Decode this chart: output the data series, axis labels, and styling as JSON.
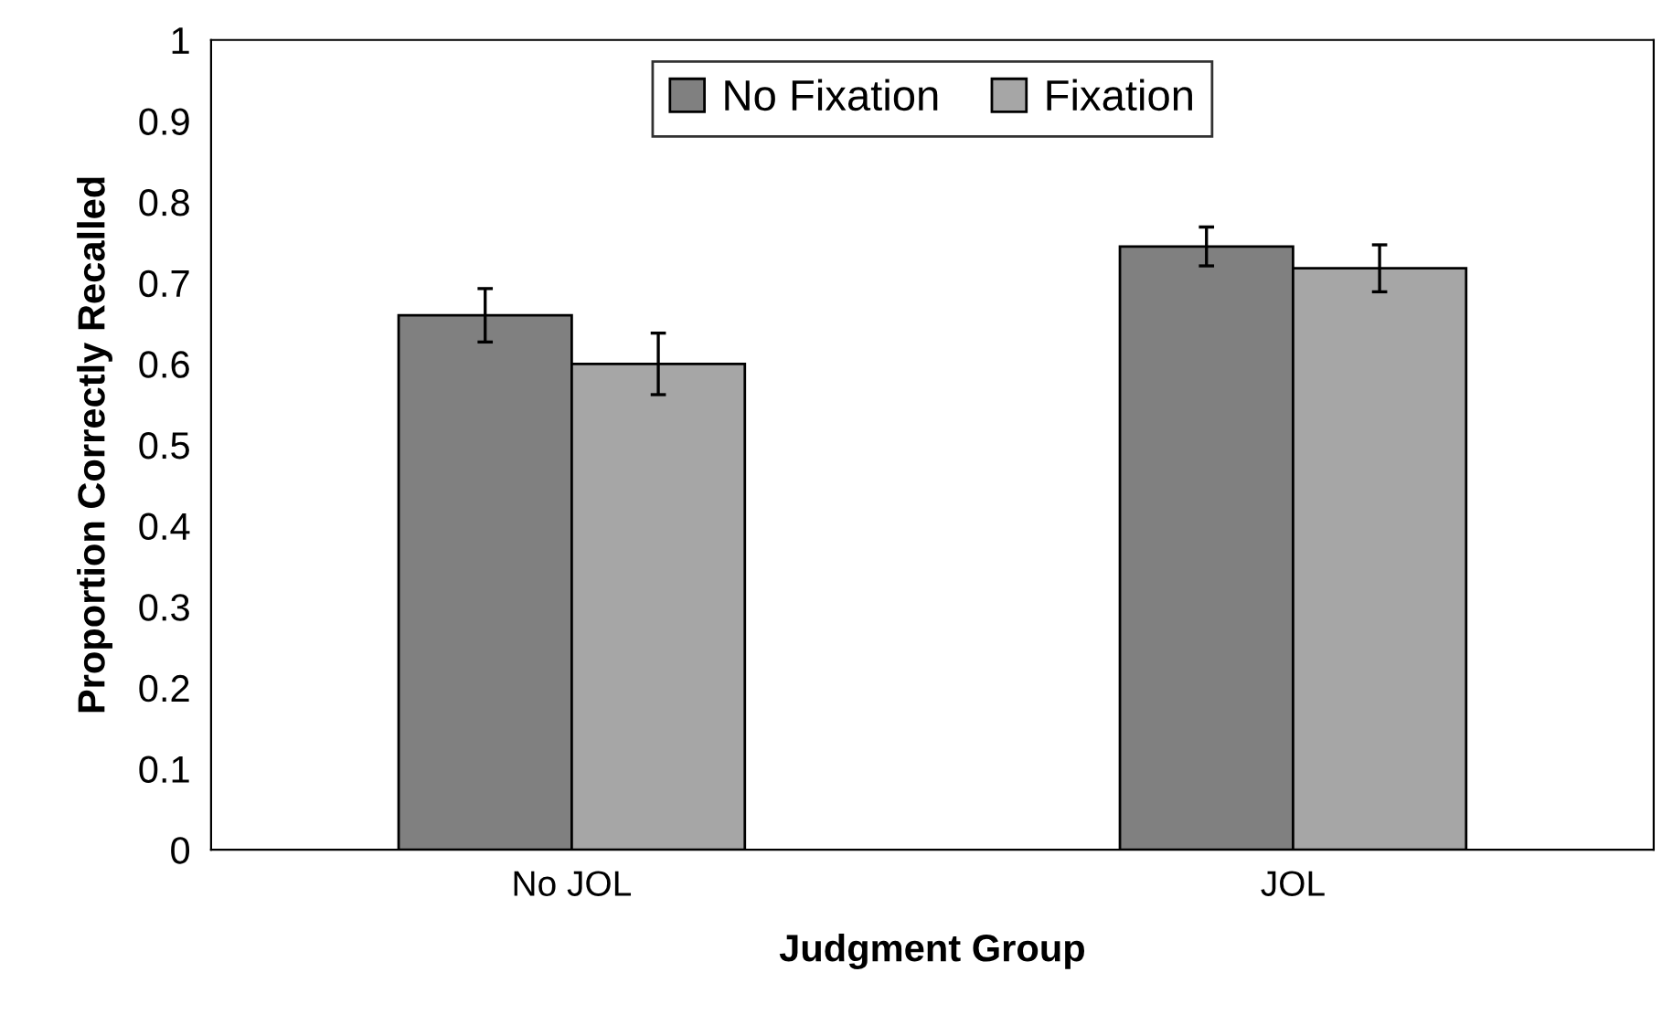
{
  "chart_data": {
    "type": "bar",
    "xlabel": "Judgment Group",
    "ylabel": "Proportion Correctly Recalled",
    "categories": [
      "No JOL",
      "JOL"
    ],
    "series": [
      {
        "name": "No Fixation",
        "color": "#808080",
        "values": [
          0.66,
          0.745
        ],
        "errors": [
          0.033,
          0.024
        ]
      },
      {
        "name": "Fixation",
        "color": "#a6a6a6",
        "values": [
          0.6,
          0.718
        ],
        "errors": [
          0.038,
          0.029
        ]
      }
    ],
    "ylim": [
      0,
      1
    ],
    "yticks": [
      0,
      0.1,
      0.2,
      0.3,
      0.4,
      0.5,
      0.6,
      0.7,
      0.8,
      0.9,
      1
    ],
    "grid": false,
    "legend": "top"
  }
}
